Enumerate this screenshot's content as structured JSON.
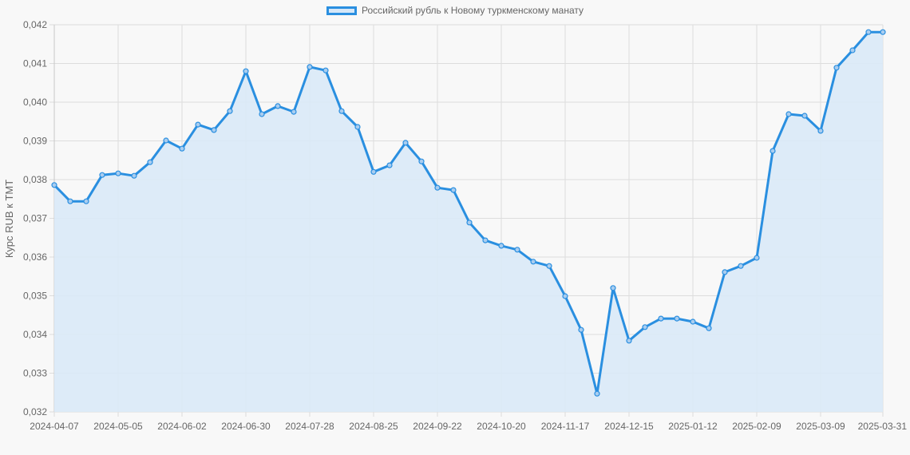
{
  "legend": {
    "label": "Российский рубль к Новому туркменскому манату"
  },
  "colors": {
    "line": "#2a8fe0",
    "fill": "#d9e9f7",
    "grid": "#dddddd",
    "text": "#666666",
    "background": "#f8f8f8"
  },
  "chart_data": {
    "type": "area",
    "title": "",
    "xlabel": "",
    "ylabel": "Курс RUB к TMT",
    "ylim": [
      0.032,
      0.042
    ],
    "yticks": [
      "0,032",
      "0,033",
      "0,034",
      "0,035",
      "0,036",
      "0,037",
      "0,038",
      "0,039",
      "0,040",
      "0,041",
      "0,042"
    ],
    "xtick_labels": [
      "2024-04-07",
      "2024-05-05",
      "2024-06-02",
      "2024-06-30",
      "2024-07-28",
      "2024-08-25",
      "2024-09-22",
      "2024-10-20",
      "2024-11-17",
      "2024-12-15",
      "2025-01-12",
      "2025-02-09",
      "2025-03-09",
      "2025-03-31"
    ],
    "grid": true,
    "legend_position": "top",
    "series": [
      {
        "name": "Российский рубль к Новому туркменскому манату",
        "x": [
          "2024-04-07",
          "2024-04-14",
          "2024-04-21",
          "2024-04-28",
          "2024-05-05",
          "2024-05-12",
          "2024-05-19",
          "2024-05-26",
          "2024-06-02",
          "2024-06-09",
          "2024-06-16",
          "2024-06-23",
          "2024-06-30",
          "2024-07-07",
          "2024-07-14",
          "2024-07-21",
          "2024-07-28",
          "2024-08-04",
          "2024-08-11",
          "2024-08-18",
          "2024-08-25",
          "2024-09-01",
          "2024-09-08",
          "2024-09-15",
          "2024-09-22",
          "2024-09-29",
          "2024-10-06",
          "2024-10-13",
          "2024-10-20",
          "2024-10-27",
          "2024-11-03",
          "2024-11-10",
          "2024-11-17",
          "2024-11-24",
          "2024-12-01",
          "2024-12-08",
          "2024-12-15",
          "2024-12-22",
          "2024-12-29",
          "2025-01-05",
          "2025-01-12",
          "2025-01-19",
          "2025-01-26",
          "2025-02-02",
          "2025-02-09",
          "2025-02-16",
          "2025-02-23",
          "2025-03-02",
          "2025-03-09",
          "2025-03-16",
          "2025-03-23",
          "2025-03-30",
          "2025-03-31"
        ],
        "values": [
          0.03786,
          0.03744,
          0.03744,
          0.03812,
          0.03816,
          0.0381,
          0.03845,
          0.03901,
          0.0388,
          0.03942,
          0.03928,
          0.03977,
          0.0408,
          0.03969,
          0.0399,
          0.03975,
          0.04091,
          0.04082,
          0.03977,
          0.03936,
          0.0382,
          0.03837,
          0.03895,
          0.03847,
          0.03779,
          0.03773,
          0.03689,
          0.03643,
          0.03629,
          0.03619,
          0.03588,
          0.03577,
          0.03499,
          0.03412,
          0.03247,
          0.0352,
          0.03384,
          0.03419,
          0.03441,
          0.03441,
          0.03433,
          0.03416,
          0.03561,
          0.03577,
          0.03598,
          0.03874,
          0.03969,
          0.03965,
          0.03926,
          0.04089,
          0.04134,
          0.04181,
          0.04181
        ]
      }
    ]
  }
}
